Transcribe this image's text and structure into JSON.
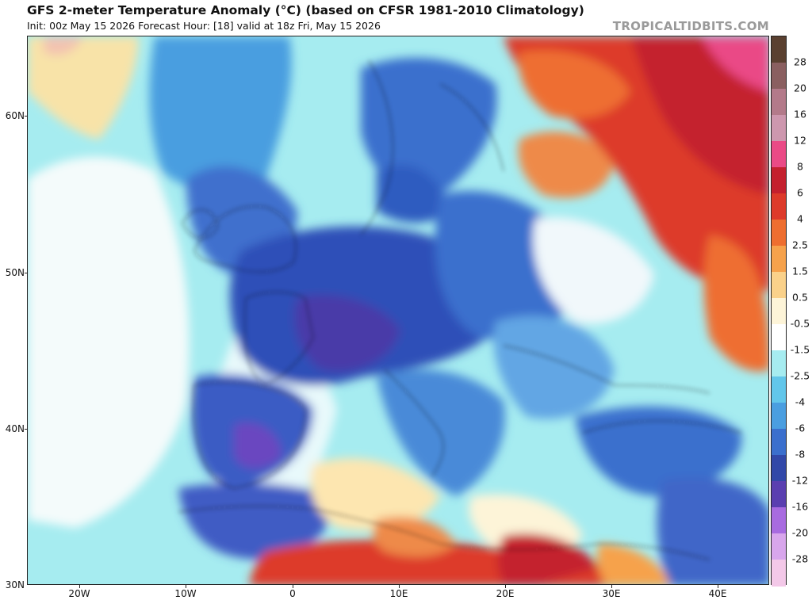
{
  "header": {
    "title": "GFS 2-meter Temperature Anomaly (°C) (based on CFSR 1981-2010 Climatology)",
    "subtitle": "Init: 00z May 15 2026   Forecast Hour: [18]   valid at 18z Fri, May 15 2026",
    "brand": "TROPICALTIDBITS.COM"
  },
  "axes": {
    "latitude_labels": [
      "60N",
      "50N",
      "40N",
      "30N"
    ],
    "longitude_labels": [
      "20W",
      "10W",
      "0",
      "10E",
      "20E",
      "30E",
      "40E"
    ]
  },
  "colorbar": {
    "labels": [
      "28",
      "20",
      "16",
      "12",
      "8",
      "6",
      "4",
      "2.5",
      "1.5",
      "0.5",
      "-0.5",
      "-1.5",
      "-2.5",
      "-4",
      "-6",
      "-8",
      "-12",
      "-16",
      "-20",
      "-28"
    ],
    "colors": [
      "#5a4030",
      "#8a5f60",
      "#b37a8a",
      "#cd97ae",
      "#ea4a86",
      "#c4202e",
      "#dd3a2a",
      "#ee6e30",
      "#f6a24c",
      "#fad18a",
      "#fdf4d8",
      "#ffffff",
      "#a6ecf0",
      "#62c6ea",
      "#4a9ee0",
      "#3b6fcd",
      "#3248a8",
      "#5a3fb0",
      "#a86be0",
      "#d8a6ec",
      "#f3c8e8"
    ]
  },
  "colors": {
    "ocean_base": "#a6ecf0",
    "cold_anomaly": "#2f5cc0",
    "strong_cold_anomaly": "#5a3fb0",
    "warm_anomaly": "#dd3a2a",
    "strong_warm_anomaly": "#c4202e",
    "neutral": "#ffffff"
  }
}
